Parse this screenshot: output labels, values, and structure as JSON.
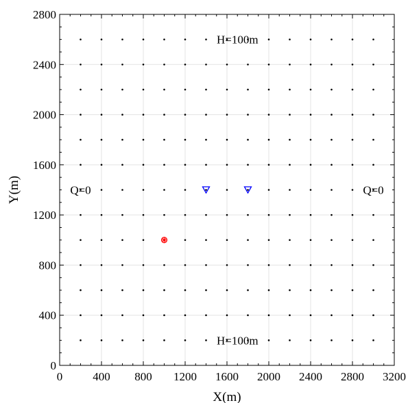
{
  "chart_data": {
    "type": "scatter",
    "title": "",
    "xlabel": "X(m)",
    "ylabel": "Y(m)",
    "xlim": [
      0,
      3200
    ],
    "ylim": [
      0,
      2800
    ],
    "xticks": [
      0,
      400,
      800,
      1200,
      1600,
      2000,
      2400,
      2800,
      3200
    ],
    "yticks": [
      0,
      400,
      800,
      1200,
      1600,
      2000,
      2400,
      2800
    ],
    "grid": true,
    "grid_nodes": {
      "x_start": 200,
      "x_end": 3000,
      "x_step": 200,
      "y_start": 200,
      "y_end": 2600,
      "y_step": 200,
      "color": "#000000"
    },
    "series": [
      {
        "marker": "triangle-down-open",
        "color": "#0000ff",
        "points": [
          [
            1400,
            1400
          ],
          [
            1800,
            1400
          ]
        ]
      },
      {
        "marker": "circle-cross",
        "color": "#ff0000",
        "points": [
          [
            1000,
            1000
          ]
        ]
      }
    ],
    "annotations": [
      {
        "text": "H=100m",
        "x": 1700,
        "y": 2600
      },
      {
        "text": "H=100m",
        "x": 1700,
        "y": 200
      },
      {
        "text": "Q=0",
        "x": 200,
        "y": 1400
      },
      {
        "text": "Q=0",
        "x": 3000,
        "y": 1400
      }
    ]
  }
}
